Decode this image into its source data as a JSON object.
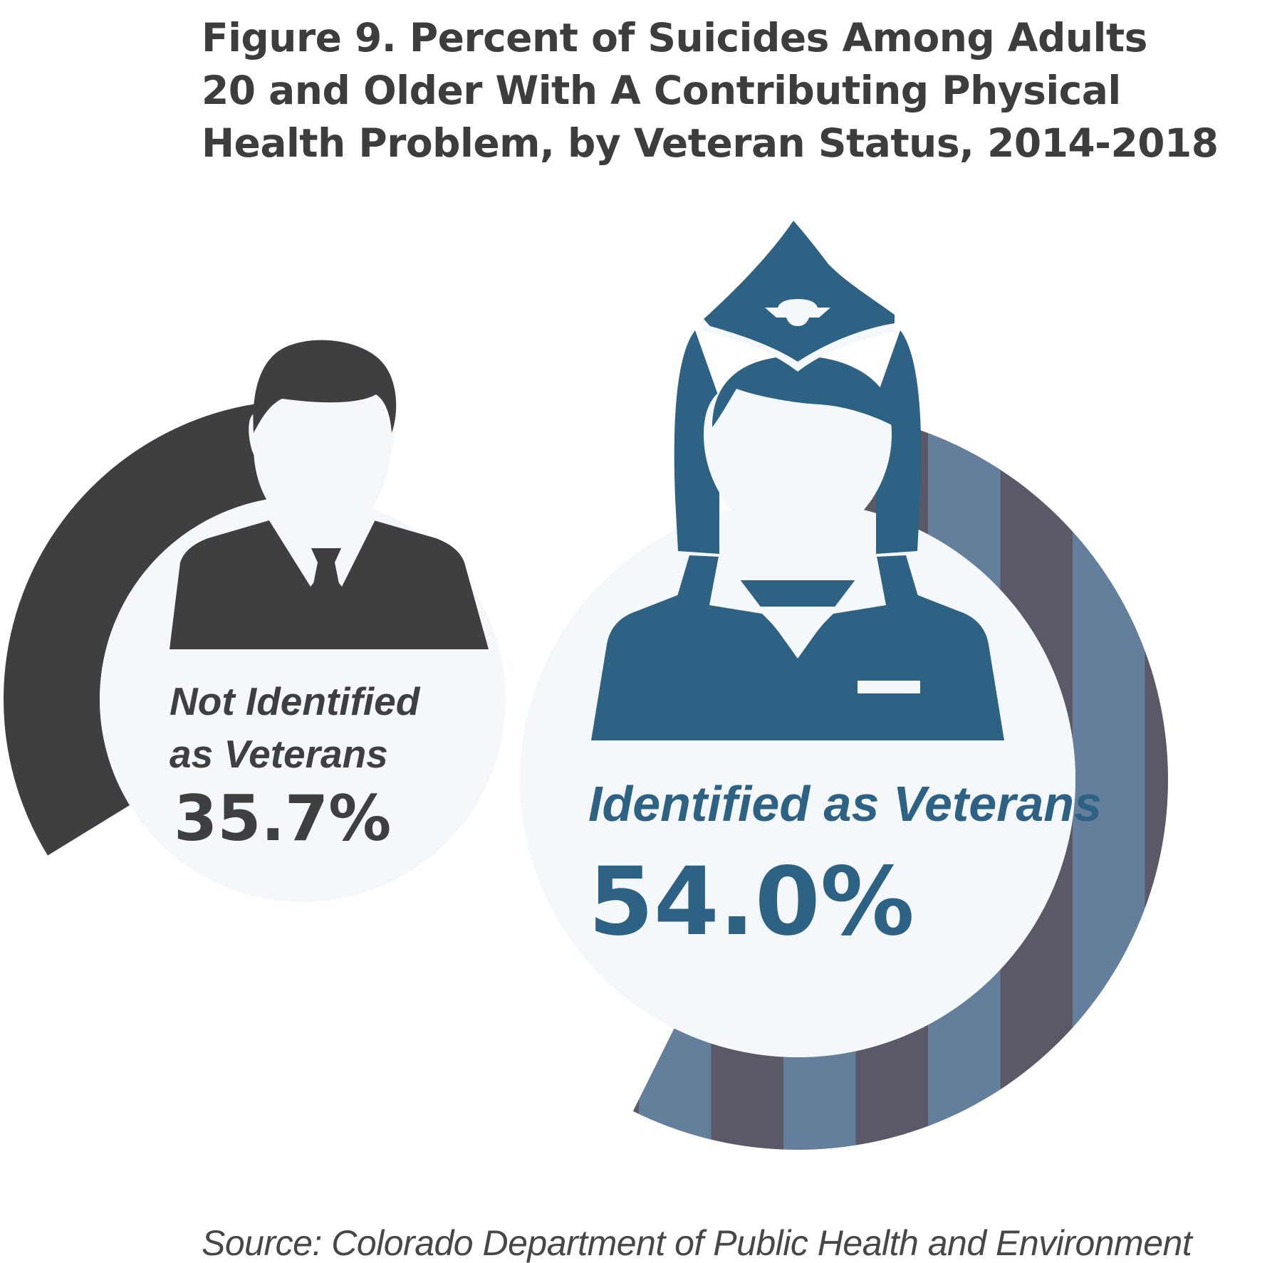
{
  "title_lines": [
    "Figure 9. Percent of Suicides Among Adults",
    "20 and Older With A Contributing Physical",
    "Health Problem, by Veteran Status, 2014-2018"
  ],
  "source": "Source: Colorado Department of Public Health and Environment",
  "colors": {
    "title": "#3d3d3d",
    "not_veteran": "#3f3f41",
    "veteran": "#2e6285",
    "veteran_arc_light": "#647f9b",
    "veteran_arc_dark": "#5b5868",
    "circle_fill": "#f4f8fa"
  },
  "icons": {
    "not_veteran": "businessman-icon",
    "veteran": "female-service-member-icon"
  },
  "chart_data": {
    "type": "pie",
    "title": "Figure 9. Percent of Suicides Among Adults 20 and Older With A Contributing Physical Health Problem, by Veteran Status, 2014-2018",
    "unit": "%",
    "series": [
      {
        "name": "Not Identified as Veterans",
        "label_lines": [
          "Not Identified",
          "as Veterans"
        ],
        "value": 35.7,
        "value_label": "35.7%"
      },
      {
        "name": "Identified as Veterans",
        "label_lines": [
          "Identified as Veterans"
        ],
        "value": 54.0,
        "value_label": "54.0%"
      }
    ]
  }
}
